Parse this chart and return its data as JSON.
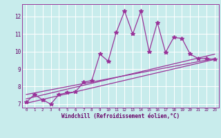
{
  "title": "",
  "xlabel": "Windchill (Refroidissement éolien,°C)",
  "ylabel": "",
  "bg_color": "#c8ecec",
  "line_color": "#993399",
  "grid_color": "#ffffff",
  "xlim": [
    -0.5,
    23.5
  ],
  "ylim": [
    6.8,
    12.7
  ],
  "xticks": [
    0,
    1,
    2,
    3,
    4,
    5,
    6,
    7,
    8,
    9,
    10,
    11,
    12,
    13,
    14,
    15,
    16,
    17,
    18,
    19,
    20,
    21,
    22,
    23
  ],
  "yticks": [
    7,
    8,
    9,
    10,
    11,
    12
  ],
  "series": [
    {
      "x": [
        0,
        1,
        2,
        3,
        4,
        5,
        6,
        7,
        8,
        9,
        10,
        11,
        12,
        13,
        14,
        15,
        16,
        17,
        18,
        19,
        20,
        21,
        22,
        23
      ],
      "y": [
        7.1,
        7.55,
        7.25,
        7.0,
        7.55,
        7.65,
        7.7,
        8.25,
        8.35,
        9.85,
        9.45,
        11.1,
        12.3,
        11.0,
        12.3,
        10.0,
        11.65,
        9.95,
        10.8,
        10.75,
        9.85,
        9.6,
        9.6,
        9.55
      ],
      "marker": true
    },
    {
      "x": [
        0,
        23
      ],
      "y": [
        7.05,
        9.55
      ],
      "marker": false
    },
    {
      "x": [
        0,
        23
      ],
      "y": [
        7.3,
        9.85
      ],
      "marker": false
    },
    {
      "x": [
        0,
        23
      ],
      "y": [
        7.55,
        9.6
      ],
      "marker": false
    }
  ]
}
